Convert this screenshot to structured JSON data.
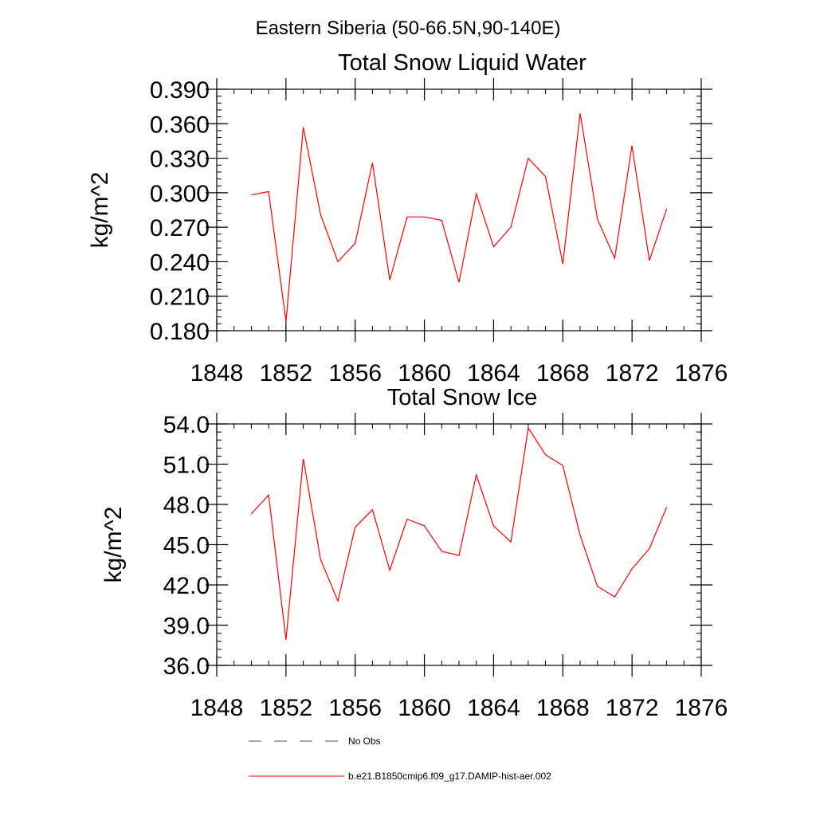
{
  "figure": {
    "title": "Eastern Siberia (50-66.5N,90-140E)"
  },
  "legend": {
    "placement": "bottom",
    "items": [
      {
        "label": "No Obs",
        "style": "dashed",
        "color": "#4a4a8a"
      },
      {
        "label": "b.e21.B1850cmip6.f09_g17.DAMIP-hist-aer.002",
        "style": "solid",
        "color": "#ff0000"
      }
    ]
  },
  "chart_data": [
    {
      "type": "line",
      "title": "Total Snow Liquid Water",
      "ylabel": "kg/m^2",
      "xlabel": "",
      "xlim": [
        1848,
        1876
      ],
      "ylim": [
        0.18,
        0.39
      ],
      "xticks": [
        1848,
        1852,
        1856,
        1860,
        1864,
        1868,
        1872,
        1876
      ],
      "xtick_labels": [
        "1848",
        "1852",
        "1856",
        "1860",
        "1864",
        "1868",
        "1872",
        "1876"
      ],
      "yticks": [
        0.18,
        0.21,
        0.24,
        0.27,
        0.3,
        0.33,
        0.36,
        0.39
      ],
      "ytick_labels": [
        "0.180",
        "0.210",
        "0.240",
        "0.270",
        "0.300",
        "0.330",
        "0.360",
        "0.390"
      ],
      "yminor_step": 0.006,
      "xminor_step": 1,
      "grid": false,
      "series": [
        {
          "name": "b.e21.B1850cmip6.f09_g17.DAMIP-hist-aer.002",
          "color": "#ff0000",
          "x": [
            1850,
            1851,
            1852,
            1853,
            1854,
            1855,
            1856,
            1857,
            1858,
            1859,
            1860,
            1861,
            1862,
            1863,
            1864,
            1865,
            1866,
            1867,
            1868,
            1869,
            1870,
            1871,
            1872,
            1873,
            1874
          ],
          "y": [
            0.298,
            0.301,
            0.188,
            0.357,
            0.281,
            0.24,
            0.256,
            0.326,
            0.224,
            0.279,
            0.279,
            0.276,
            0.222,
            0.299,
            0.253,
            0.27,
            0.33,
            0.314,
            0.238,
            0.369,
            0.277,
            0.243,
            0.341,
            0.241,
            0.286
          ]
        }
      ]
    },
    {
      "type": "line",
      "title": "Total Snow Ice",
      "ylabel": "kg/m^2",
      "xlabel": "",
      "xlim": [
        1848,
        1876
      ],
      "ylim": [
        36.0,
        54.0
      ],
      "xticks": [
        1848,
        1852,
        1856,
        1860,
        1864,
        1868,
        1872,
        1876
      ],
      "xtick_labels": [
        "1848",
        "1852",
        "1856",
        "1860",
        "1864",
        "1868",
        "1872",
        "1876"
      ],
      "yticks": [
        36,
        39,
        42,
        45,
        48,
        51,
        54
      ],
      "ytick_labels": [
        "36.0",
        "39.0",
        "42.0",
        "45.0",
        "48.0",
        "51.0",
        "54.0"
      ],
      "yminor_step": 0.6,
      "xminor_step": 1,
      "grid": false,
      "series": [
        {
          "name": "b.e21.B1850cmip6.f09_g17.DAMIP-hist-aer.002",
          "color": "#ff0000",
          "x": [
            1850,
            1851,
            1852,
            1853,
            1854,
            1855,
            1856,
            1857,
            1858,
            1859,
            1860,
            1861,
            1862,
            1863,
            1864,
            1865,
            1866,
            1867,
            1868,
            1869,
            1870,
            1871,
            1872,
            1873,
            1874
          ],
          "y": [
            47.3,
            48.7,
            37.9,
            51.4,
            43.9,
            40.8,
            46.3,
            47.6,
            43.1,
            46.9,
            46.4,
            44.5,
            44.2,
            50.2,
            46.4,
            45.2,
            53.7,
            51.7,
            50.9,
            45.7,
            41.9,
            41.1,
            43.2,
            44.7,
            47.8
          ]
        }
      ]
    }
  ]
}
